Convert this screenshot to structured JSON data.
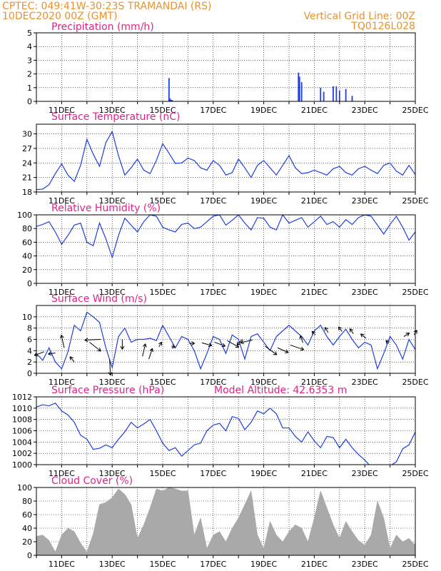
{
  "header": {
    "line1": "CPTEC:   049:41W-30:23S   TRAMANDAI (RS)",
    "line2": "10DEC2020 00Z (GMT)",
    "grid_note": "Vertical Grid Line: 00Z",
    "run_code": "TQ0126L028"
  },
  "colors": {
    "header": "#e8922e",
    "title": "#e0228a",
    "line": "#1f3fe0",
    "cloud": "#a9a9a9"
  },
  "x_axis": {
    "start": "10DEC2020 00Z",
    "end": "25DEC2020 00Z",
    "ticks": [
      "11DEC",
      "13DEC",
      "15DEC",
      "17DEC",
      "19DEC",
      "21DEC",
      "23DEC",
      "25DEC"
    ]
  },
  "chart_data": [
    {
      "id": "precipitation",
      "type": "bar",
      "title": "Precipitation (mm/h)",
      "ylim": [
        0,
        5
      ],
      "yticks": [
        "0",
        "1",
        "2",
        "3",
        "4",
        "5"
      ],
      "grid": true,
      "x": [
        "15DEC 06Z",
        "15DEC 07Z",
        "15DEC 08Z",
        "15DEC 09Z",
        "20DEC 09Z",
        "20DEC 10Z",
        "20DEC 12Z",
        "21DEC 18Z",
        "21DEC 21Z",
        "22DEC 00Z",
        "21DEC 06Z",
        "21DEC 09Z",
        "22DEC 06Z",
        "22DEC 12Z"
      ],
      "values": [
        1.7,
        0.2,
        0.1,
        0.1,
        2.1,
        1.8,
        1.4,
        1.1,
        1.1,
        0.8,
        1.0,
        0.7,
        0.9,
        0.4
      ]
    },
    {
      "id": "temperature",
      "type": "line",
      "title": "Surface Temperature (nC)",
      "ylim": [
        18,
        32
      ],
      "yticks": [
        "18",
        "21",
        "24",
        "27",
        "30"
      ],
      "grid": true,
      "x": [
        0,
        0.25,
        0.5,
        0.75,
        1,
        1.25,
        1.5,
        1.75,
        2,
        2.25,
        2.5,
        2.75,
        3,
        3.25,
        3.5,
        3.75,
        4,
        4.25,
        4.5,
        4.75,
        5,
        5.25,
        5.5,
        5.75,
        6,
        6.25,
        6.5,
        6.75,
        7,
        7.25,
        7.5,
        7.75,
        8,
        8.25,
        8.5,
        8.75,
        9,
        9.25,
        9.5,
        9.75,
        10,
        10.25,
        10.5,
        10.75,
        11,
        11.25,
        11.5,
        11.75,
        12,
        12.25,
        12.5,
        12.75,
        13,
        13.25,
        13.5,
        13.75,
        14,
        14.25,
        14.5,
        14.75,
        15
      ],
      "values": [
        18.5,
        18.6,
        19.5,
        21.8,
        23.8,
        21.5,
        20.2,
        23.5,
        28.9,
        25.8,
        23.3,
        28.2,
        30.5,
        25.5,
        21.5,
        23.0,
        24.8,
        22.5,
        21.8,
        24.5,
        28.0,
        26.0,
        23.9,
        24.0,
        25.0,
        24.5,
        23.0,
        22.5,
        24.5,
        23.5,
        21.5,
        22.0,
        24.8,
        23.0,
        21.0,
        23.5,
        24.5,
        23.0,
        21.5,
        23.5,
        25.5,
        23.0,
        21.8,
        22.0,
        22.5,
        22.0,
        21.5,
        22.8,
        23.3,
        22.0,
        21.5,
        22.8,
        23.3,
        22.5,
        21.8,
        23.5,
        24.0,
        22.3,
        21.5,
        23.5,
        21.6
      ]
    },
    {
      "id": "humidity",
      "type": "line",
      "title": "Relative Humidity (%)",
      "ylim": [
        0,
        100
      ],
      "yticks": [
        "0",
        "20",
        "40",
        "60",
        "80",
        "100"
      ],
      "grid": true,
      "x": [
        0,
        0.25,
        0.5,
        0.75,
        1,
        1.25,
        1.5,
        1.75,
        2,
        2.25,
        2.5,
        2.75,
        3,
        3.25,
        3.5,
        3.75,
        4,
        4.25,
        4.5,
        4.75,
        5,
        5.25,
        5.5,
        5.75,
        6,
        6.25,
        6.5,
        6.75,
        7,
        7.25,
        7.5,
        7.75,
        8,
        8.25,
        8.5,
        8.75,
        9,
        9.25,
        9.5,
        9.75,
        10,
        10.25,
        10.5,
        10.75,
        11,
        11.25,
        11.5,
        11.75,
        12,
        12.25,
        12.5,
        12.75,
        13,
        13.25,
        13.5,
        13.75,
        14,
        14.25,
        14.5,
        14.75,
        15
      ],
      "values": [
        83,
        86,
        90,
        75,
        57,
        70,
        85,
        88,
        60,
        55,
        88,
        65,
        38,
        70,
        95,
        85,
        75,
        90,
        100,
        98,
        82,
        78,
        75,
        86,
        88,
        80,
        82,
        90,
        98,
        100,
        85,
        92,
        100,
        88,
        78,
        96,
        95,
        82,
        78,
        100,
        88,
        92,
        96,
        82,
        90,
        98,
        86,
        90,
        82,
        93,
        86,
        96,
        100,
        98,
        85,
        72,
        86,
        98,
        82,
        63,
        75
      ]
    },
    {
      "id": "wind",
      "type": "line",
      "title": "Surface Wind (m/s)",
      "ylim": [
        0,
        12
      ],
      "yticks": [
        "0",
        "2",
        "4",
        "6",
        "8",
        "10"
      ],
      "grid": true,
      "x": [
        0,
        0.25,
        0.5,
        0.75,
        1,
        1.25,
        1.5,
        1.75,
        2,
        2.25,
        2.5,
        2.75,
        3,
        3.25,
        3.5,
        3.75,
        4,
        4.25,
        4.5,
        4.75,
        5,
        5.25,
        5.5,
        5.75,
        6,
        6.25,
        6.5,
        6.75,
        7,
        7.25,
        7.5,
        7.75,
        8,
        8.25,
        8.5,
        8.75,
        9,
        9.25,
        9.5,
        9.75,
        10,
        10.25,
        10.5,
        10.75,
        11,
        11.25,
        11.5,
        11.75,
        12,
        12.25,
        12.5,
        12.75,
        13,
        13.25,
        13.5,
        13.75,
        14,
        14.25,
        14.5,
        14.75,
        15
      ],
      "values": [
        3.5,
        2.3,
        4.5,
        2.0,
        0.8,
        3.8,
        8.5,
        7.5,
        10.8,
        10.0,
        9.0,
        4.5,
        1.0,
        6.5,
        8.0,
        5.5,
        6.0,
        6.0,
        6.2,
        5.8,
        8.5,
        6.5,
        4.5,
        6.5,
        6.0,
        4.0,
        0.8,
        3.5,
        6.5,
        6.0,
        3.5,
        6.8,
        6.0,
        2.5,
        6.5,
        7.0,
        5.5,
        4.0,
        6.5,
        7.5,
        8.5,
        7.5,
        6.5,
        5.0,
        7.5,
        8.5,
        6.5,
        5.0,
        6.5,
        7.8,
        6.0,
        4.5,
        5.5,
        5.0,
        0.8,
        3.5,
        6.5,
        5.0,
        2.5,
        6.0,
        4.2
      ],
      "arrows": {
        "x": [
          0.3,
          0.75,
          1.1,
          1.5,
          2.1,
          2.55,
          2.9,
          3.4,
          4.2,
          4.45,
          4.85,
          5.35,
          6.05,
          6.55,
          7.05,
          7.55,
          8.15,
          8.55,
          9.05,
          9.55,
          10.05,
          10.55,
          11.05,
          11.55,
          12.1,
          12.55,
          13.05,
          13.95,
          14.55,
          14.95
        ],
        "y": [
          3.8,
          3.6,
          4.5,
          2.0,
          5.5,
          6.0,
          2.5,
          6.0,
          3.0,
          2.5,
          4.7,
          4.8,
          5.3,
          5.4,
          5.5,
          5.8,
          6.0,
          5.9,
          4.8,
          4.5,
          5.0,
          5.4,
          6.8,
          7.2,
          7.4,
          7.0,
          6.2,
          5.3,
          6.5,
          6.8
        ],
        "u": [
          -2.7,
          -2.0,
          -0.8,
          -1.2,
          3.2,
          -4.5,
          0.2,
          0.0,
          0.8,
          1.0,
          0.8,
          1.0,
          1.5,
          2.8,
          3.0,
          3.3,
          -1.5,
          -3.3,
          3.3,
          3.0,
          3.8,
          -0.7,
          -1.0,
          -0.9,
          -1.0,
          -1.0,
          -1.5,
          -0.8,
          1.5,
          0.8
        ],
        "v": [
          -1.0,
          -0.3,
          3.6,
          1.5,
          -2.5,
          -0.2,
          -4.5,
          -2.8,
          3.5,
          3.0,
          1.3,
          -0.3,
          0.0,
          -0.8,
          -1.1,
          -1.9,
          -1.6,
          -0.8,
          -2.4,
          -1.3,
          -1.3,
          2.0,
          1.0,
          1.5,
          1.3,
          1.4,
          1.2,
          0.8,
          1.0,
          1.3
        ]
      }
    },
    {
      "id": "pressure",
      "type": "line",
      "title": "Surface Pressure (hPa)",
      "subtitle": "Model Altitude: 42.6353 m",
      "ylim": [
        1000,
        1012
      ],
      "yticks": [
        "1000",
        "1002",
        "1004",
        "1006",
        "1008",
        "1010",
        "1012"
      ],
      "grid": true,
      "x": [
        0,
        0.25,
        0.5,
        0.75,
        1,
        1.25,
        1.5,
        1.75,
        2,
        2.25,
        2.5,
        2.75,
        3,
        3.25,
        3.5,
        3.75,
        4,
        4.25,
        4.5,
        4.75,
        5,
        5.25,
        5.5,
        5.75,
        6,
        6.25,
        6.5,
        6.75,
        7,
        7.25,
        7.5,
        7.75,
        8,
        8.25,
        8.5,
        8.75,
        9,
        9.25,
        9.5,
        9.75,
        10,
        10.25,
        10.5,
        10.75,
        11,
        11.25,
        11.5,
        11.75,
        12,
        12.25,
        12.5,
        12.75,
        13,
        13.25,
        13.5,
        13.75,
        14,
        14.25,
        14.5,
        14.75,
        15
      ],
      "values": [
        1010.2,
        1010.6,
        1010.4,
        1010.9,
        1009.5,
        1008.8,
        1007.5,
        1005.2,
        1004.5,
        1002.7,
        1002.9,
        1003.5,
        1003.0,
        1004.5,
        1005.8,
        1007.5,
        1006.5,
        1007.2,
        1008.0,
        1006.0,
        1003.8,
        1002.5,
        1003.0,
        1001.5,
        1002.5,
        1003.5,
        1003.8,
        1006.0,
        1007.0,
        1007.3,
        1006.0,
        1008.5,
        1008.2,
        1006.2,
        1007.5,
        1009.5,
        1009.0,
        1010.0,
        1009.0,
        1006.5,
        1006.5,
        1005.0,
        1004.0,
        1005.8,
        1004.2,
        1003.0,
        1005.0,
        1004.8,
        1003.0,
        1004.5,
        1003.0,
        1001.8,
        1000.8,
        999.6,
        999.5,
        999.6,
        999.8,
        1000.5,
        1002.8,
        1003.5,
        1005.8
      ]
    },
    {
      "id": "cloud",
      "type": "area",
      "title": "Cloud Cover (%)",
      "ylim": [
        0,
        100
      ],
      "yticks": [
        "0",
        "20",
        "40",
        "60",
        "80",
        "100"
      ],
      "grid": true,
      "x": [
        0,
        0.25,
        0.5,
        0.75,
        1,
        1.25,
        1.5,
        1.75,
        2,
        2.25,
        2.5,
        2.75,
        3,
        3.25,
        3.5,
        3.75,
        4,
        4.25,
        4.5,
        4.75,
        5,
        5.25,
        5.5,
        5.75,
        6,
        6.25,
        6.5,
        6.75,
        7,
        7.25,
        7.5,
        7.75,
        8,
        8.25,
        8.5,
        8.75,
        9,
        9.25,
        9.5,
        9.75,
        10,
        10.25,
        10.5,
        10.75,
        11,
        11.25,
        11.5,
        11.75,
        12,
        12.25,
        12.5,
        12.75,
        13,
        13.25,
        13.5,
        13.75,
        14,
        14.25,
        14.5,
        14.75,
        15
      ],
      "values": [
        28,
        30,
        22,
        5,
        30,
        40,
        35,
        18,
        5,
        32,
        75,
        78,
        85,
        98,
        90,
        75,
        25,
        45,
        70,
        98,
        95,
        100,
        98,
        95,
        95,
        30,
        55,
        10,
        30,
        35,
        20,
        40,
        55,
        75,
        95,
        30,
        10,
        50,
        30,
        20,
        35,
        45,
        40,
        20,
        55,
        95,
        70,
        45,
        25,
        50,
        35,
        22,
        15,
        30,
        80,
        55,
        10,
        30,
        20,
        25,
        15
      ]
    }
  ]
}
